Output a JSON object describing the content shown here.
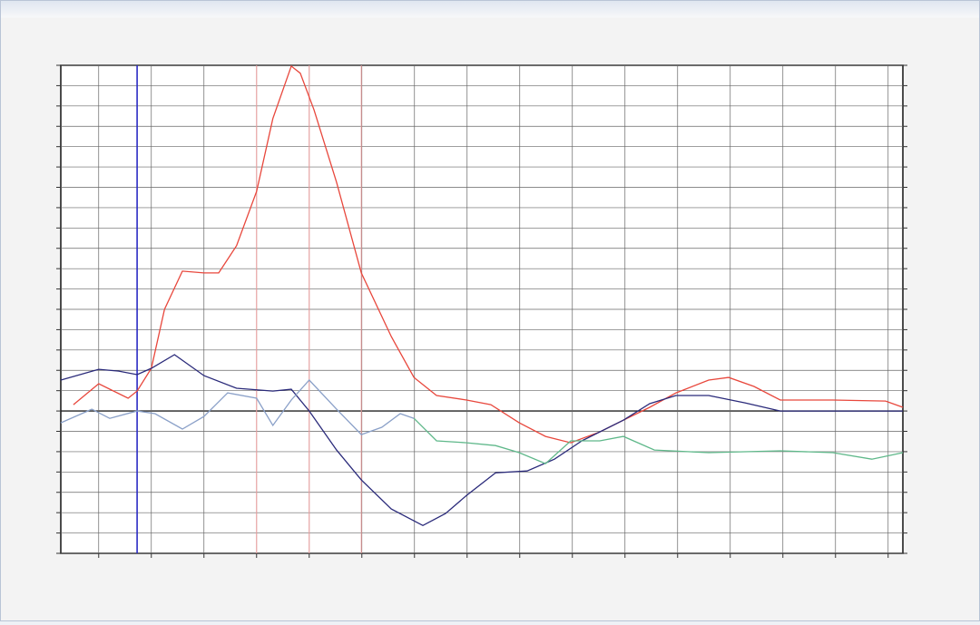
{
  "chart_data": {
    "type": "line",
    "xlim": [
      0,
      16
    ],
    "ylim": [
      -7,
      17
    ],
    "xticks": [
      0.72,
      1.72,
      2.72,
      3.72,
      4.72,
      5.72,
      6.72,
      7.72,
      8.72,
      9.72,
      10.72,
      11.72,
      12.72,
      13.72,
      14.72,
      15.72
    ],
    "yticks": [
      -7,
      -6,
      -5,
      -4,
      -3,
      -2,
      -1,
      0,
      1,
      2,
      3,
      4,
      5,
      6,
      7,
      8,
      9,
      10,
      11,
      12,
      13,
      14,
      15,
      16,
      17
    ],
    "grid": true,
    "cursor": {
      "x": 1.45,
      "color": "#2b2bc4"
    },
    "markers": {
      "x": [
        3.72,
        4.72,
        5.71
      ],
      "color": "#f0a0a0"
    },
    "series": [
      {
        "color": "#e8473c",
        "x": [
          0.24,
          0.72,
          1.28,
          1.45,
          1.72,
          1.97,
          2.31,
          2.72,
          3.0,
          3.34,
          3.72,
          4.03,
          4.38,
          4.55,
          4.81,
          5.24,
          5.71,
          6.28,
          6.71,
          7.14,
          7.71,
          8.17,
          8.71,
          9.21,
          9.69,
          10.24,
          10.69,
          11.19,
          11.69,
          12.31,
          12.69,
          13.17,
          13.67,
          14.67,
          15.67,
          16.0
        ],
        "values": [
          0.31,
          1.34,
          0.63,
          0.98,
          2.1,
          5.0,
          6.88,
          6.79,
          6.79,
          8.13,
          10.8,
          14.38,
          16.96,
          16.61,
          14.82,
          11.25,
          6.79,
          3.66,
          1.65,
          0.76,
          0.54,
          0.31,
          -0.58,
          -1.25,
          -1.56,
          -1.03,
          -0.45,
          0.18,
          0.89,
          1.52,
          1.65,
          1.21,
          0.54,
          0.54,
          0.49,
          0.18
        ]
      },
      {
        "color": "#2a2a7a",
        "x": [
          0,
          0.72,
          1.1,
          1.45,
          1.72,
          2.16,
          2.72,
          3.34,
          4.03,
          4.38,
          4.72,
          5.24,
          5.71,
          6.28,
          6.88,
          7.31,
          7.71,
          8.26,
          8.86,
          9.38,
          9.9,
          10.69,
          11.19,
          11.69,
          12.31,
          13.0,
          13.67,
          16.0
        ],
        "values": [
          1.52,
          2.05,
          1.96,
          1.79,
          2.1,
          2.77,
          1.74,
          1.12,
          0.98,
          1.07,
          0,
          -1.92,
          -3.39,
          -4.82,
          -5.63,
          -5.04,
          -4.15,
          -3.04,
          -2.95,
          -2.37,
          -1.47,
          -0.45,
          0.36,
          0.76,
          0.76,
          0.4,
          0,
          0
        ]
      },
      {
        "color": "#8aa0c8",
        "x": [
          0,
          0.59,
          0.93,
          1.45,
          1.79,
          2.31,
          2.72,
          3.17,
          3.72,
          4.03,
          4.38,
          4.72,
          5.24,
          5.71,
          6.1,
          6.45,
          6.71
        ],
        "values": [
          -0.58,
          0.09,
          -0.36,
          0,
          -0.13,
          -0.89,
          -0.27,
          0.89,
          0.63,
          -0.71,
          0.54,
          1.52,
          0.09,
          -1.16,
          -0.8,
          -0.13,
          -0.36
        ]
      },
      {
        "color": "#5fb88a",
        "x": [
          6.71,
          7.14,
          7.71,
          8.26,
          8.71,
          9.21,
          9.69,
          10.24,
          10.69,
          11.28,
          12.31,
          13.67,
          14.67,
          15.41,
          16.0
        ],
        "values": [
          -0.36,
          -1.47,
          -1.56,
          -1.7,
          -2.05,
          -2.59,
          -1.47,
          -1.47,
          -1.25,
          -1.92,
          -2.05,
          -1.96,
          -2.05,
          -2.37,
          -2.05
        ]
      }
    ]
  }
}
